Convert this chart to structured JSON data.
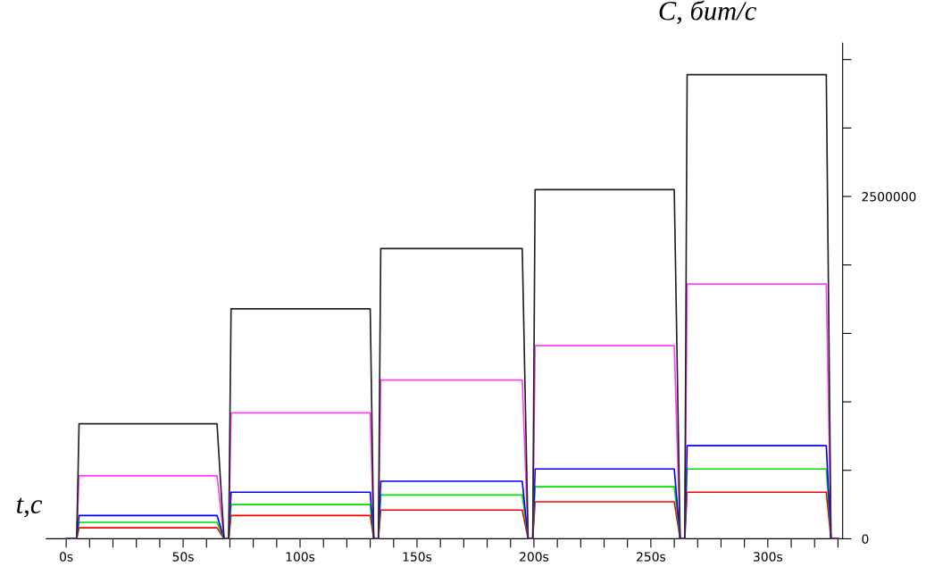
{
  "chart_data": {
    "type": "line",
    "xlabel": "t,c",
    "ylabel": "C, бит/с",
    "x": [
      0,
      4.5,
      5.5,
      35,
      64.5,
      67.5,
      68.5,
      69.5,
      70.5,
      100,
      130,
      131.5,
      132.5,
      133.5,
      134.5,
      165,
      195,
      197.5,
      198.5,
      199.5,
      200.5,
      230,
      260,
      262.5,
      263.5,
      264.5,
      265.5,
      295,
      325,
      327,
      330
    ],
    "series": [
      {
        "color": "#222222",
        "values": [
          0,
          0,
          840000,
          840000,
          840000,
          0,
          0,
          0,
          1680000,
          1680000,
          1680000,
          0,
          0,
          0,
          2120000,
          2120000,
          2120000,
          0,
          0,
          0,
          2550000,
          2550000,
          2550000,
          0,
          0,
          0,
          3390000,
          3390000,
          3390000,
          0,
          0
        ]
      },
      {
        "color": "#ff40ff",
        "values": [
          0,
          0,
          460000,
          460000,
          460000,
          0,
          0,
          0,
          920000,
          920000,
          920000,
          0,
          0,
          0,
          1160000,
          1160000,
          1160000,
          0,
          0,
          0,
          1410000,
          1410000,
          1410000,
          0,
          0,
          0,
          1860000,
          1860000,
          1860000,
          0,
          0
        ]
      },
      {
        "color": "#0000ff",
        "values": [
          0,
          0,
          170000,
          170000,
          170000,
          0,
          0,
          0,
          340000,
          340000,
          340000,
          0,
          0,
          0,
          420000,
          420000,
          420000,
          0,
          0,
          0,
          510000,
          510000,
          510000,
          0,
          0,
          0,
          680000,
          680000,
          680000,
          0,
          0
        ]
      },
      {
        "color": "#00dd00",
        "values": [
          0,
          0,
          120000,
          120000,
          120000,
          0,
          0,
          0,
          250000,
          250000,
          250000,
          0,
          0,
          0,
          320000,
          320000,
          320000,
          0,
          0,
          0,
          380000,
          380000,
          380000,
          0,
          0,
          0,
          510000,
          510000,
          510000,
          0,
          0
        ]
      },
      {
        "color": "#ff0000",
        "values": [
          0,
          0,
          80000,
          80000,
          80000,
          0,
          0,
          0,
          170000,
          170000,
          170000,
          0,
          0,
          0,
          210000,
          210000,
          210000,
          0,
          0,
          0,
          270000,
          270000,
          270000,
          0,
          0,
          0,
          340000,
          340000,
          340000,
          0,
          0
        ]
      }
    ],
    "xlim": [
      -8.5,
      332
    ],
    "xticks": [
      {
        "value": 0,
        "label": "0s"
      },
      {
        "value": 10,
        "label": null
      },
      {
        "value": 20,
        "label": null
      },
      {
        "value": 30,
        "label": null
      },
      {
        "value": 40,
        "label": null
      },
      {
        "value": 50,
        "label": "50s"
      },
      {
        "value": 60,
        "label": null
      },
      {
        "value": 70,
        "label": null
      },
      {
        "value": 80,
        "label": null
      },
      {
        "value": 90,
        "label": null
      },
      {
        "value": 100,
        "label": "100s"
      },
      {
        "value": 110,
        "label": null
      },
      {
        "value": 120,
        "label": null
      },
      {
        "value": 130,
        "label": null
      },
      {
        "value": 140,
        "label": null
      },
      {
        "value": 150,
        "label": "150s"
      },
      {
        "value": 160,
        "label": null
      },
      {
        "value": 170,
        "label": null
      },
      {
        "value": 180,
        "label": null
      },
      {
        "value": 190,
        "label": null
      },
      {
        "value": 200,
        "label": "200s"
      },
      {
        "value": 210,
        "label": null
      },
      {
        "value": 220,
        "label": null
      },
      {
        "value": 230,
        "label": null
      },
      {
        "value": 240,
        "label": null
      },
      {
        "value": 250,
        "label": "250s"
      },
      {
        "value": 260,
        "label": null
      },
      {
        "value": 270,
        "label": null
      },
      {
        "value": 280,
        "label": null
      },
      {
        "value": 290,
        "label": null
      },
      {
        "value": 300,
        "label": "300s"
      },
      {
        "value": 310,
        "label": null
      },
      {
        "value": 320,
        "label": null
      },
      {
        "value": 330,
        "label": null
      }
    ],
    "ylim": [
      0,
      3620000
    ],
    "yticks": [
      0,
      {
        "value": 500000,
        "label": null
      },
      {
        "value": 1000000,
        "label": null
      },
      {
        "value": 1500000,
        "label": null
      },
      {
        "value": 2000000,
        "label": null
      },
      2500000,
      {
        "value": 3000000,
        "label": null
      },
      {
        "value": 3500000,
        "label": null
      }
    ],
    "grid": false,
    "marker": "none",
    "line_style": "solid"
  }
}
